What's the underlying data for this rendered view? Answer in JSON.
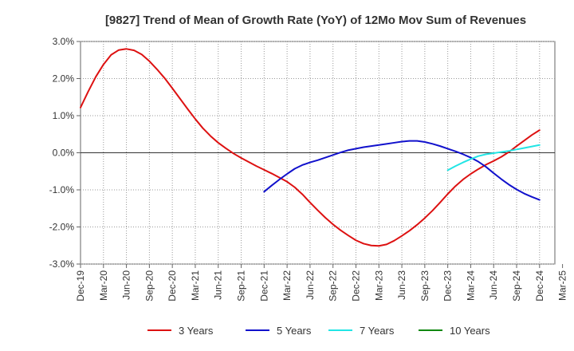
{
  "chart_data": {
    "type": "line",
    "title": "[9827]  Trend of Mean of Growth Rate (YoY) of 12Mo Mov Sum of Revenues",
    "xlabel": "",
    "ylabel": "",
    "ylim": [
      -3.0,
      3.0
    ],
    "y_ticks": [
      3.0,
      2.0,
      1.0,
      0.0,
      -1.0,
      -2.0,
      -3.0
    ],
    "y_tick_labels": [
      "3.0%",
      "2.0%",
      "1.0%",
      "0.0%",
      "-1.0%",
      "-2.0%",
      "-3.0%"
    ],
    "x_tick_labels": [
      "Dec-19",
      "Mar-20",
      "Jun-20",
      "Sep-20",
      "Dec-20",
      "Mar-21",
      "Jun-21",
      "Sep-21",
      "Dec-21",
      "Mar-22",
      "Jun-22",
      "Sep-22",
      "Dec-22",
      "Mar-23",
      "Jun-23",
      "Sep-23",
      "Dec-23",
      "Mar-24",
      "Jun-24",
      "Sep-24",
      "Dec-24",
      "Mar-25"
    ],
    "x_count_months": 63,
    "grid": true,
    "legend_position": "bottom",
    "series": [
      {
        "name": "3 Years",
        "color": "#dd1111",
        "start_index": 0,
        "values": [
          1.22,
          1.65,
          2.05,
          2.38,
          2.64,
          2.77,
          2.8,
          2.76,
          2.65,
          2.47,
          2.25,
          2.01,
          1.74,
          1.46,
          1.18,
          0.91,
          0.66,
          0.45,
          0.27,
          0.12,
          -0.02,
          -0.14,
          -0.25,
          -0.36,
          -0.46,
          -0.56,
          -0.67,
          -0.78,
          -0.93,
          -1.12,
          -1.34,
          -1.55,
          -1.75,
          -1.93,
          -2.09,
          -2.23,
          -2.36,
          -2.45,
          -2.5,
          -2.51,
          -2.47,
          -2.37,
          -2.24,
          -2.1,
          -1.94,
          -1.76,
          -1.56,
          -1.34,
          -1.11,
          -0.9,
          -0.72,
          -0.57,
          -0.44,
          -0.32,
          -0.22,
          -0.11,
          0.02,
          0.18,
          0.33,
          0.48,
          0.61
        ]
      },
      {
        "name": "5 Years",
        "color": "#1111cc",
        "start_index": 24,
        "values": [
          -1.05,
          -0.88,
          -0.72,
          -0.57,
          -0.43,
          -0.33,
          -0.26,
          -0.2,
          -0.13,
          -0.06,
          0.01,
          0.07,
          0.11,
          0.15,
          0.18,
          0.21,
          0.24,
          0.27,
          0.3,
          0.32,
          0.32,
          0.29,
          0.24,
          0.18,
          0.11,
          0.04,
          -0.04,
          -0.13,
          -0.24,
          -0.38,
          -0.55,
          -0.71,
          -0.86,
          -0.99,
          -1.1,
          -1.19,
          -1.27
        ]
      },
      {
        "name": "7 Years",
        "color": "#22e5e5",
        "start_index": 48,
        "values": [
          -0.47,
          -0.36,
          -0.26,
          -0.17,
          -0.09,
          -0.04,
          -0.01,
          0.02,
          0.05,
          0.09,
          0.13,
          0.17,
          0.21
        ]
      },
      {
        "name": "10 Years",
        "color": "#118811",
        "start_index": 0,
        "values": []
      }
    ]
  }
}
